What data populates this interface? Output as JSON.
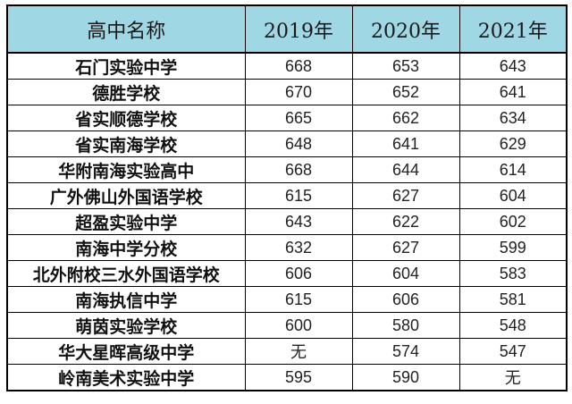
{
  "table": {
    "headers": [
      "高中名称",
      "2019年",
      "2020年",
      "2021年"
    ],
    "rows": [
      {
        "name": "石门实验中学",
        "y2019": "668",
        "y2020": "653",
        "y2021": "643"
      },
      {
        "name": "德胜学校",
        "y2019": "670",
        "y2020": "652",
        "y2021": "641"
      },
      {
        "name": "省实顺德学校",
        "y2019": "665",
        "y2020": "662",
        "y2021": "634"
      },
      {
        "name": "省实南海学校",
        "y2019": "648",
        "y2020": "641",
        "y2021": "629"
      },
      {
        "name": "华附南海实验高中",
        "y2019": "668",
        "y2020": "644",
        "y2021": "614"
      },
      {
        "name": "广外佛山外国语学校",
        "y2019": "615",
        "y2020": "627",
        "y2021": "604"
      },
      {
        "name": "超盈实验中学",
        "y2019": "643",
        "y2020": "622",
        "y2021": "602"
      },
      {
        "name": "南海中学分校",
        "y2019": "632",
        "y2020": "627",
        "y2021": "599"
      },
      {
        "name": "北外附校三水外国语学校",
        "y2019": "606",
        "y2020": "604",
        "y2021": "583"
      },
      {
        "name": "南海执信中学",
        "y2019": "615",
        "y2020": "606",
        "y2021": "581"
      },
      {
        "name": "萌茵实验学校",
        "y2019": "600",
        "y2020": "580",
        "y2021": "548"
      },
      {
        "name": "华大星晖高级中学",
        "y2019": "无",
        "y2020": "574",
        "y2021": "547"
      },
      {
        "name": "岭南美术实验中学",
        "y2019": "595",
        "y2020": "590",
        "y2021": "无"
      }
    ]
  },
  "colors": {
    "header_background": "#9fd7e4",
    "border": "#000000"
  }
}
